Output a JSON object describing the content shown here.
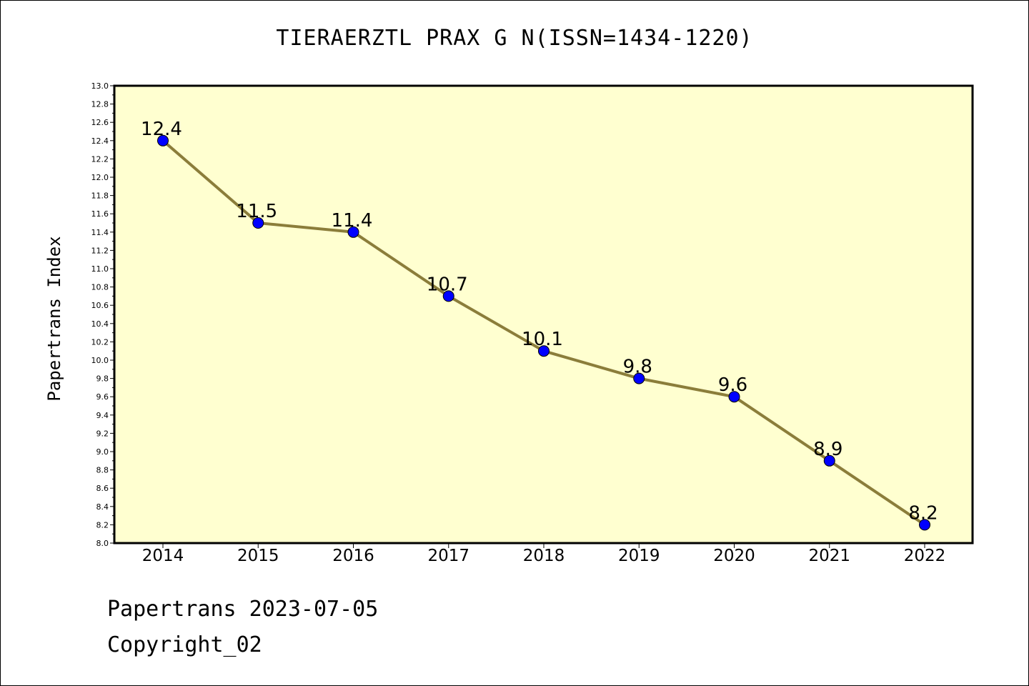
{
  "chart_data": {
    "type": "line",
    "title": "TIERAERZTL PRAX G N(ISSN=1434-1220)",
    "xlabel": "",
    "ylabel": "Papertrans Index",
    "categories": [
      "2014",
      "2015",
      "2016",
      "2017",
      "2018",
      "2019",
      "2020",
      "2021",
      "2022"
    ],
    "series": [
      {
        "values": [
          12.4,
          11.5,
          11.4,
          10.7,
          10.1,
          9.8,
          9.6,
          8.9,
          8.2
        ],
        "data_labels": [
          "12.4",
          "11.5",
          "11.4",
          "10.7",
          "10.1",
          "9.8",
          "9.6",
          "8.9",
          "8.2"
        ],
        "line_color": "#8b7d3a",
        "marker_color": "#0000ff"
      }
    ],
    "ylim": [
      8.0,
      13.0
    ],
    "y_ticks": [
      "8.0",
      "8.2",
      "8.4",
      "8.6",
      "8.8",
      "9.0",
      "9.2",
      "9.4",
      "9.6",
      "9.8",
      "10.0",
      "10.2",
      "10.4",
      "10.6",
      "10.8",
      "11.0",
      "11.2",
      "11.4",
      "11.6",
      "11.8",
      "12.0",
      "12.2",
      "12.4",
      "12.6",
      "12.8",
      "13.0"
    ],
    "grid": false,
    "plot_background": "#ffffd0"
  },
  "footer": {
    "date_line": "Papertrans 2023-07-05",
    "copyright_line": "Copyright_02"
  }
}
